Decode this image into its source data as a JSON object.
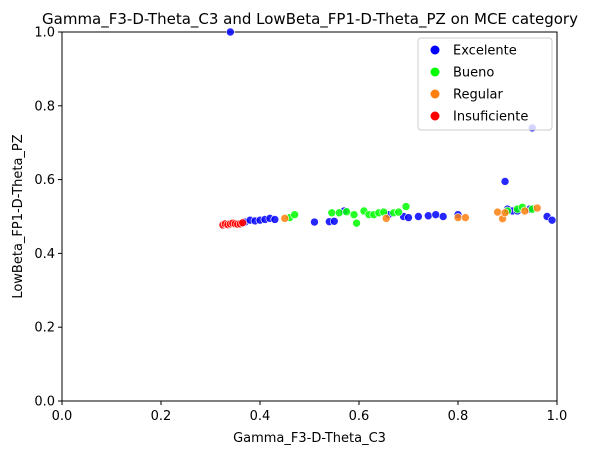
{
  "chart_data": {
    "type": "scatter",
    "title": "Gamma_F3-D-Theta_C3 and LowBeta_FP1-D-Theta_PZ on MCE category",
    "xlabel": "Gamma_F3-D-Theta_C3",
    "ylabel": "LowBeta_FP1-D-Theta_PZ",
    "xlim": [
      0,
      1
    ],
    "ylim": [
      0,
      1
    ],
    "x_ticks": [
      "0.0",
      "0.2",
      "0.4",
      "0.6",
      "0.8",
      "1.0"
    ],
    "y_ticks": [
      "0.0",
      "0.2",
      "0.4",
      "0.6",
      "0.8",
      "1.0"
    ],
    "grid": false,
    "legend_position": "top-right",
    "series": [
      {
        "name": "Excelente",
        "color": "#0000ff",
        "points": [
          [
            0.34,
            1.0
          ],
          [
            0.37,
            0.485
          ],
          [
            0.38,
            0.49
          ],
          [
            0.39,
            0.488
          ],
          [
            0.4,
            0.49
          ],
          [
            0.41,
            0.492
          ],
          [
            0.42,
            0.495
          ],
          [
            0.43,
            0.492
          ],
          [
            0.51,
            0.485
          ],
          [
            0.54,
            0.486
          ],
          [
            0.55,
            0.487
          ],
          [
            0.57,
            0.515
          ],
          [
            0.66,
            0.505
          ],
          [
            0.69,
            0.5
          ],
          [
            0.7,
            0.497
          ],
          [
            0.72,
            0.5
          ],
          [
            0.74,
            0.502
          ],
          [
            0.755,
            0.505
          ],
          [
            0.77,
            0.5
          ],
          [
            0.8,
            0.505
          ],
          [
            0.895,
            0.595
          ],
          [
            0.9,
            0.52
          ],
          [
            0.91,
            0.515
          ],
          [
            0.92,
            0.515
          ],
          [
            0.945,
            0.52
          ],
          [
            0.95,
            0.74
          ],
          [
            0.98,
            0.5
          ],
          [
            0.99,
            0.49
          ]
        ]
      },
      {
        "name": "Bueno",
        "color": "#00ff00",
        "points": [
          [
            0.46,
            0.497
          ],
          [
            0.47,
            0.505
          ],
          [
            0.545,
            0.51
          ],
          [
            0.56,
            0.51
          ],
          [
            0.575,
            0.513
          ],
          [
            0.59,
            0.505
          ],
          [
            0.595,
            0.482
          ],
          [
            0.61,
            0.515
          ],
          [
            0.62,
            0.505
          ],
          [
            0.63,
            0.505
          ],
          [
            0.64,
            0.51
          ],
          [
            0.65,
            0.512
          ],
          [
            0.67,
            0.51
          ],
          [
            0.68,
            0.512
          ],
          [
            0.695,
            0.527
          ],
          [
            0.9,
            0.515
          ],
          [
            0.92,
            0.52
          ],
          [
            0.93,
            0.525
          ],
          [
            0.95,
            0.52
          ]
        ]
      },
      {
        "name": "Regular",
        "color": "#ff7f0e",
        "points": [
          [
            0.45,
            0.495
          ],
          [
            0.655,
            0.495
          ],
          [
            0.8,
            0.497
          ],
          [
            0.815,
            0.497
          ],
          [
            0.88,
            0.512
          ],
          [
            0.89,
            0.494
          ],
          [
            0.895,
            0.51
          ],
          [
            0.935,
            0.515
          ],
          [
            0.96,
            0.523
          ]
        ]
      },
      {
        "name": "Insuficiente",
        "color": "#ff0000",
        "points": [
          [
            0.325,
            0.477
          ],
          [
            0.33,
            0.48
          ],
          [
            0.335,
            0.478
          ],
          [
            0.34,
            0.48
          ],
          [
            0.345,
            0.482
          ],
          [
            0.35,
            0.48
          ],
          [
            0.355,
            0.479
          ],
          [
            0.36,
            0.48
          ],
          [
            0.365,
            0.483
          ]
        ]
      }
    ]
  }
}
